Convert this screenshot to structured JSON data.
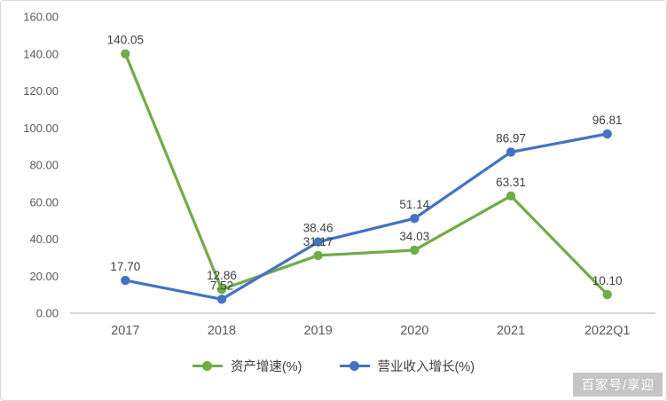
{
  "watermark": "百家号/享迎",
  "axis_color": "#bfbfbf",
  "axis_label_color": "#595959",
  "data_label_color": "#3f3f3f",
  "chart_data": {
    "type": "line",
    "title": "",
    "xlabel": "",
    "ylabel": "",
    "categories": [
      "2017",
      "2018",
      "2019",
      "2020",
      "2021",
      "2022Q1"
    ],
    "series": [
      {
        "name": "资产增速(%)",
        "color": "#70ad47",
        "values": [
          140.05,
          12.86,
          31.17,
          34.03,
          63.31,
          10.1
        ]
      },
      {
        "name": "营业收入增长(%)",
        "color": "#4472c4",
        "values": [
          17.7,
          7.52,
          38.46,
          51.14,
          86.97,
          96.81
        ]
      }
    ],
    "ylim": [
      0,
      160
    ],
    "ytick_step": 20,
    "ytick_labels": [
      "0.00",
      "20.00",
      "40.00",
      "60.00",
      "80.00",
      "100.00",
      "120.00",
      "140.00",
      "160.00"
    ],
    "grid": false,
    "legend_position": "bottom",
    "markers": "circle",
    "data_labels": true
  }
}
